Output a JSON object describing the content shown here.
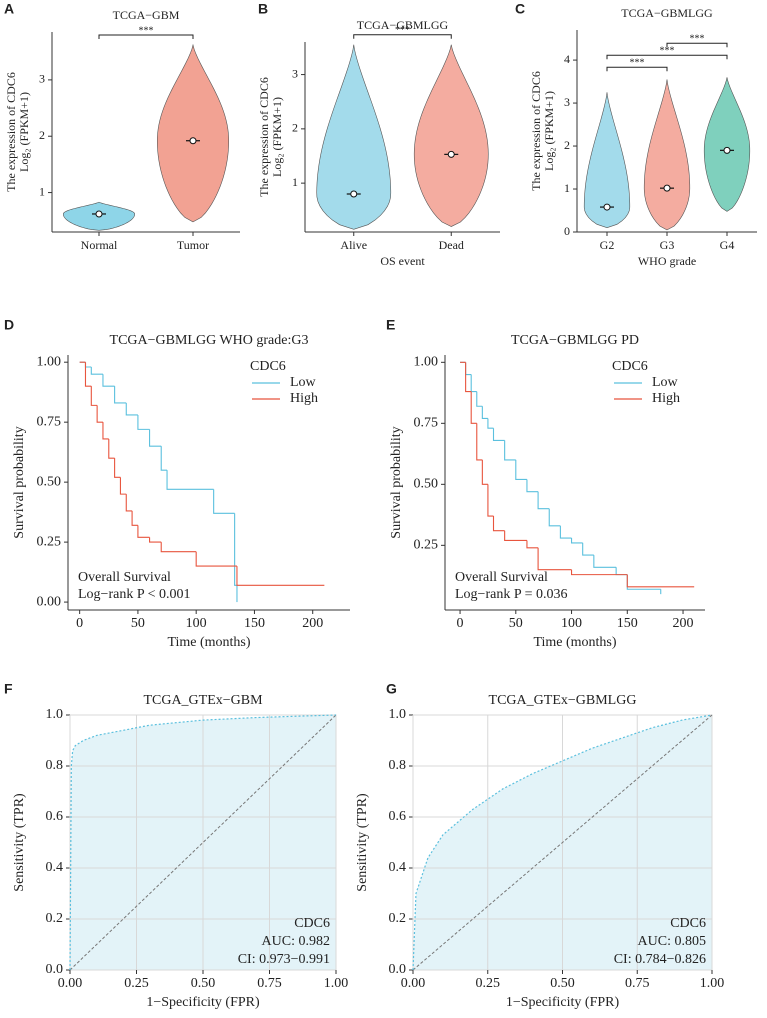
{
  "chart_data": [
    {
      "type": "violin",
      "panel": "A",
      "title": "TCGA−GBM",
      "categories": [
        "Normal",
        "Tumor"
      ],
      "colors": [
        "#8ed5e8",
        "#f2a293"
      ],
      "values": [
        0.62,
        1.92
      ],
      "min": [
        0.33,
        0.48
      ],
      "max": [
        0.83,
        3.62
      ],
      "ylim": [
        0.3,
        3.85
      ],
      "yticks": [
        1,
        2,
        3
      ],
      "ylabel": [
        "The expression  of CDC6",
        "Log₂ (FPKM+1)"
      ],
      "comparisons": [
        {
          "groups": [
            "Normal",
            "Tumor"
          ],
          "label": "***"
        }
      ]
    },
    {
      "type": "violin",
      "panel": "B",
      "title": "TCGA−GBMLGG",
      "categories": [
        "Alive",
        "Dead"
      ],
      "colors": [
        "#a3dbeb",
        "#f4aca0"
      ],
      "values": [
        0.8,
        1.53
      ],
      "min": [
        0.15,
        0.2
      ],
      "max": [
        3.55,
        3.55
      ],
      "ylim": [
        0.1,
        3.6
      ],
      "yticks": [
        1,
        2,
        3
      ],
      "ylabel": [
        "The expression  of CDC6",
        "Log₂ (FPKM+1)"
      ],
      "xlabel": "OS event",
      "comparisons": [
        {
          "groups": [
            "Alive",
            "Dead"
          ],
          "label": "***"
        }
      ]
    },
    {
      "type": "violin",
      "panel": "C",
      "title": "TCGA−GBMLGG",
      "categories": [
        "G2",
        "G3",
        "G4"
      ],
      "colors": [
        "#a3dbeb",
        "#f4aca0",
        "#7fd0bd"
      ],
      "values": [
        0.58,
        1.02,
        1.9
      ],
      "min": [
        0.1,
        0.05,
        0.48
      ],
      "max": [
        3.25,
        3.55,
        3.6
      ],
      "ylim": [
        0,
        4.7
      ],
      "yticks": [
        0,
        1,
        2,
        3,
        4
      ],
      "ylabel": [
        "The expression  of CDC6",
        "Log₂ (FPKM+1)"
      ],
      "xlabel": "WHO grade",
      "comparisons": [
        {
          "groups": [
            "G2",
            "G3"
          ],
          "label": "***"
        },
        {
          "groups": [
            "G2",
            "G4"
          ],
          "label": "***"
        },
        {
          "groups": [
            "G3",
            "G4"
          ],
          "label": "***"
        }
      ]
    },
    {
      "type": "survival",
      "panel": "D",
      "title": "TCGA−GBMLGG WHO grade:G3",
      "legend_title": "CDC6",
      "series": [
        {
          "name": "Low",
          "color": "#5bc0de",
          "x": [
            0,
            5,
            10,
            20,
            30,
            40,
            50,
            60,
            70,
            75,
            115,
            133,
            135
          ],
          "values": [
            1,
            0.98,
            0.95,
            0.9,
            0.83,
            0.78,
            0.72,
            0.65,
            0.55,
            0.47,
            0.37,
            0.07,
            0
          ]
        },
        {
          "name": "High",
          "color": "#e8553e",
          "x": [
            0,
            5,
            10,
            15,
            20,
            25,
            30,
            35,
            40,
            45,
            50,
            60,
            70,
            100,
            135,
            210
          ],
          "values": [
            1,
            0.9,
            0.82,
            0.75,
            0.68,
            0.6,
            0.52,
            0.45,
            0.38,
            0.32,
            0.27,
            0.25,
            0.21,
            0.15,
            0.07,
            0.07
          ]
        }
      ],
      "xlim": [
        -10,
        232
      ],
      "ylim": [
        -0.033,
        1.03
      ],
      "xticks": [
        0,
        50,
        100,
        150,
        200
      ],
      "yticks": [
        {
          "value": 0,
          "label": "0.00"
        },
        0.25,
        {
          "value": 0.5,
          "label": "0.50"
        },
        0.75,
        {
          "value": 1,
          "label": "1.00"
        }
      ],
      "xlabel": "Time (months)",
      "ylabel": "Survival probability",
      "annotations": [
        "Overall  Survival",
        "Log−rank  P < 0.001"
      ]
    },
    {
      "type": "survival",
      "panel": "E",
      "title": "TCGA−GBMLGG PD",
      "legend_title": "CDC6",
      "series": [
        {
          "name": "Low",
          "color": "#5bc0de",
          "x": [
            0,
            5,
            10,
            15,
            20,
            25,
            30,
            40,
            50,
            60,
            70,
            80,
            90,
            100,
            110,
            120,
            140,
            150,
            180
          ],
          "values": [
            1,
            0.95,
            0.88,
            0.82,
            0.77,
            0.73,
            0.68,
            0.6,
            0.52,
            0.47,
            0.4,
            0.33,
            0.28,
            0.26,
            0.21,
            0.16,
            0.13,
            0.07,
            0.05
          ]
        },
        {
          "name": "High",
          "color": "#e8553e",
          "x": [
            0,
            5,
            10,
            15,
            20,
            25,
            30,
            40,
            60,
            70,
            100,
            150,
            210
          ],
          "values": [
            1,
            0.88,
            0.75,
            0.6,
            0.5,
            0.37,
            0.31,
            0.27,
            0.24,
            0.15,
            0.13,
            0.08,
            0.08
          ]
        }
      ],
      "xlim": [
        -13.5,
        219.7
      ],
      "ylim": [
        -0.015,
        1.03
      ],
      "xticks": [
        0,
        50,
        100,
        150,
        200
      ],
      "yticks": [
        0.25,
        {
          "value": 0.5,
          "label": "0.50"
        },
        0.75,
        {
          "value": 1,
          "label": "1.00"
        }
      ],
      "xlabel": "Time (months)",
      "ylabel": "Survival probability",
      "annotations": [
        "Overall  Survival",
        "Log−rank  P = 0.036"
      ]
    },
    {
      "type": "roc",
      "panel": "F",
      "title": "TCGA_GTEx−GBM",
      "series": [
        {
          "name": "CDC6",
          "color": "#5bc0de",
          "x": [
            0,
            0.005,
            0.01,
            0.02,
            0.05,
            0.1,
            0.2,
            0.3,
            0.5,
            0.7,
            1
          ],
          "values": [
            0,
            0.8,
            0.86,
            0.88,
            0.9,
            0.92,
            0.94,
            0.96,
            0.98,
            0.99,
            1
          ]
        }
      ],
      "xlim": [
        0,
        1
      ],
      "ylim": [
        0,
        1
      ],
      "xticks": [
        {
          "value": 0,
          "label": "0.00"
        },
        0.25,
        {
          "value": 0.5,
          "label": "0.50"
        },
        0.75,
        {
          "value": 1,
          "label": "1.00"
        }
      ],
      "yticks": [
        {
          "value": 0,
          "label": "0.0"
        },
        0.2,
        0.4,
        0.6,
        0.8,
        {
          "value": 1,
          "label": "1.0"
        }
      ],
      "xlabel": "1−Specificity (FPR)",
      "ylabel": "Sensitivity (TPR)",
      "annotations": [
        "AUC: 0.982",
        "CI: 0.973−0.991"
      ]
    },
    {
      "type": "roc",
      "panel": "G",
      "title": "TCGA_GTEx−GBMLGG",
      "series": [
        {
          "name": "CDC6",
          "color": "#5bc0de",
          "x": [
            0,
            0.01,
            0.05,
            0.1,
            0.2,
            0.3,
            0.4,
            0.5,
            0.6,
            0.7,
            0.8,
            0.9,
            1
          ],
          "values": [
            0,
            0.3,
            0.44,
            0.53,
            0.63,
            0.71,
            0.77,
            0.82,
            0.87,
            0.91,
            0.95,
            0.98,
            1
          ]
        }
      ],
      "xlim": [
        0,
        1
      ],
      "ylim": [
        0,
        1
      ],
      "xticks": [
        {
          "value": 0,
          "label": "0.00"
        },
        0.25,
        {
          "value": 0.5,
          "label": "0.50"
        },
        0.75,
        {
          "value": 1,
          "label": "1.00"
        }
      ],
      "yticks": [
        {
          "value": 0,
          "label": "0.0"
        },
        0.2,
        0.4,
        0.6,
        0.8,
        {
          "value": 1,
          "label": "1.0"
        }
      ],
      "xlabel": "1−Specificity (FPR)",
      "ylabel": "Sensitivity (TPR)",
      "annotations": [
        "AUC: 0.805",
        "CI: 0.784−0.826"
      ]
    }
  ]
}
